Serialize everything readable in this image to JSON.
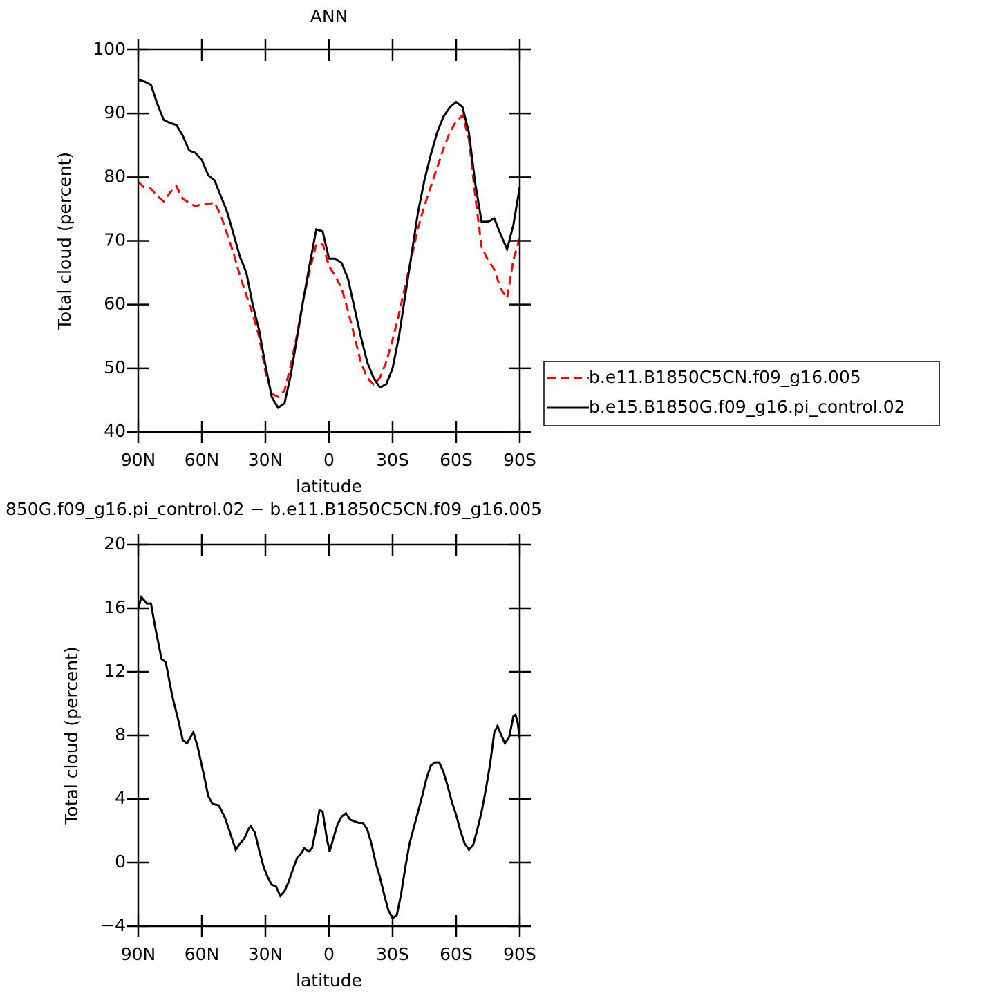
{
  "chart_data": [
    {
      "type": "line",
      "title": "ANN",
      "xlabel": "latitude",
      "ylabel": "Total cloud (percent)",
      "xlim": [
        90,
        -90
      ],
      "ylim": [
        40,
        100
      ],
      "xticks": [
        {
          "value": 90,
          "label": "90N"
        },
        {
          "value": 60,
          "label": "60N"
        },
        {
          "value": 30,
          "label": "30N"
        },
        0,
        {
          "value": -30,
          "label": "30S"
        },
        {
          "value": -60,
          "label": "60S"
        },
        {
          "value": -90,
          "label": "90S"
        }
      ],
      "yticks": [
        40,
        50,
        60,
        70,
        80,
        90,
        100
      ],
      "legend": "right",
      "x": [
        90,
        87,
        84,
        81,
        78,
        75,
        72,
        69,
        66,
        63,
        60,
        57,
        54,
        51,
        48,
        45,
        42,
        39,
        36,
        33,
        30,
        27,
        24,
        21,
        18,
        15,
        12,
        9,
        6,
        3,
        0,
        -3,
        -6,
        -9,
        -12,
        -15,
        -18,
        -21,
        -24,
        -27,
        -30,
        -33,
        -36,
        -39,
        -42,
        -45,
        -48,
        -51,
        -54,
        -57,
        -60,
        -63,
        -66,
        -69,
        -72,
        -75,
        -78,
        -81,
        -84,
        -87,
        -90
      ],
      "series": [
        {
          "name": "b.e11.B1850C5CN.f09_g16.005",
          "color": "#ff0000",
          "dash": true,
          "values": [
            79.3,
            78.3,
            78.2,
            77,
            76.2,
            77.6,
            78.6,
            76.6,
            76,
            75.4,
            75.8,
            75.8,
            76,
            74,
            71,
            68,
            64.5,
            61.5,
            58.5,
            55,
            49.5,
            46,
            45.5,
            46.5,
            50.5,
            55.5,
            61,
            65.5,
            69.5,
            69.5,
            66,
            64.5,
            62.5,
            59,
            55,
            51,
            48.5,
            47.5,
            48.5,
            51,
            54.5,
            58.5,
            63,
            67.5,
            72,
            75.5,
            78.5,
            81.5,
            84.5,
            87,
            88.8,
            89.7,
            86,
            77,
            69,
            67,
            65.5,
            62.5,
            61,
            67,
            70.5
          ]
        },
        {
          "name": "b.e15.B1850G.f09_g16.pi_control.02",
          "color": "#000000",
          "dash": false,
          "values": [
            95.3,
            95,
            94.5,
            91.5,
            89,
            88.5,
            88.2,
            86.5,
            84.2,
            83.8,
            82.7,
            80.3,
            79.5,
            77,
            74.5,
            71,
            67.5,
            65,
            60,
            56,
            50.5,
            45.5,
            43.8,
            44.5,
            49,
            55,
            61,
            66.5,
            71.8,
            71.5,
            67.2,
            67.2,
            66.5,
            64,
            59.5,
            55,
            51,
            48.5,
            47,
            47.5,
            50,
            55,
            61.5,
            68,
            74.5,
            79.5,
            83.5,
            87,
            89.5,
            91,
            91.8,
            91,
            87,
            79,
            73,
            73,
            73.5,
            71,
            68.7,
            72.5,
            78.5
          ]
        }
      ]
    },
    {
      "type": "line",
      "title": "850G.f09_g16.pi_control.02 − b.e11.B1850C5CN.f09_g16.005",
      "xlabel": "latitude",
      "ylabel": "Total cloud (percent)",
      "xlim": [
        90,
        -90
      ],
      "ylim": [
        -4,
        20
      ],
      "xticks": [
        {
          "value": 90,
          "label": "90N"
        },
        {
          "value": 60,
          "label": "60N"
        },
        {
          "value": 30,
          "label": "30N"
        },
        0,
        {
          "value": -30,
          "label": "30S"
        },
        {
          "value": -60,
          "label": "60S"
        },
        {
          "value": -90,
          "label": "90S"
        }
      ],
      "yticks": [
        {
          "value": -4,
          "label": "−4"
        },
        0,
        4,
        8,
        12,
        16,
        20
      ],
      "x": [
        90,
        88.5,
        86,
        84,
        82,
        79,
        77,
        74,
        71,
        69,
        67,
        64,
        62,
        59,
        57,
        55,
        52,
        49,
        46,
        44,
        42,
        40,
        38,
        37,
        35,
        33,
        31,
        29,
        27,
        25,
        23,
        21,
        19,
        17,
        15,
        13,
        11.7,
        9.5,
        8,
        6,
        4.5,
        3,
        1,
        -0.3,
        -2,
        -4,
        -6,
        -8,
        -10,
        -12,
        -14,
        -16,
        -18,
        -20,
        -22,
        -24,
        -26,
        -28,
        -30,
        -32,
        -34,
        -36,
        -38,
        -40,
        -42,
        -44,
        -46,
        -48,
        -50,
        -52,
        -54,
        -56,
        -58,
        -60,
        -62,
        -64,
        -66,
        -68,
        -70,
        -72,
        -74,
        -76,
        -78,
        -79.5,
        -81,
        -83,
        -85,
        -87,
        -88,
        -89,
        -90
      ],
      "series": [
        {
          "name": null,
          "color": "#000000",
          "dash": false,
          "values": [
            16,
            16.7,
            16.3,
            16.3,
            14.8,
            12.8,
            12.6,
            10.5,
            8.9,
            7.7,
            7.5,
            8.2,
            7.3,
            5.5,
            4.2,
            3.7,
            3.6,
            2.8,
            1.6,
            0.8,
            1.2,
            1.5,
            2.1,
            2.3,
            1.9,
            0.8,
            -0.2,
            -0.9,
            -1.4,
            -1.5,
            -2.1,
            -1.8,
            -1.2,
            -0.4,
            0.3,
            0.6,
            0.9,
            0.7,
            0.9,
            2.2,
            3.3,
            3.2,
            1.5,
            0.7,
            1.5,
            2.4,
            2.9,
            3.1,
            2.7,
            2.6,
            2.5,
            2.5,
            2.1,
            1.2,
            0,
            -0.9,
            -2,
            -3,
            -3.5,
            -3.3,
            -2,
            -0.3,
            1.2,
            2.2,
            3.2,
            4.2,
            5.3,
            6.1,
            6.3,
            6.3,
            5.7,
            4.8,
            3.8,
            3,
            2,
            1.2,
            0.8,
            1.1,
            2.1,
            3.2,
            4.6,
            6.2,
            8.2,
            8.6,
            8.1,
            7.5,
            7.9,
            9.2,
            9.3,
            8.8,
            7.8
          ]
        }
      ]
    }
  ]
}
